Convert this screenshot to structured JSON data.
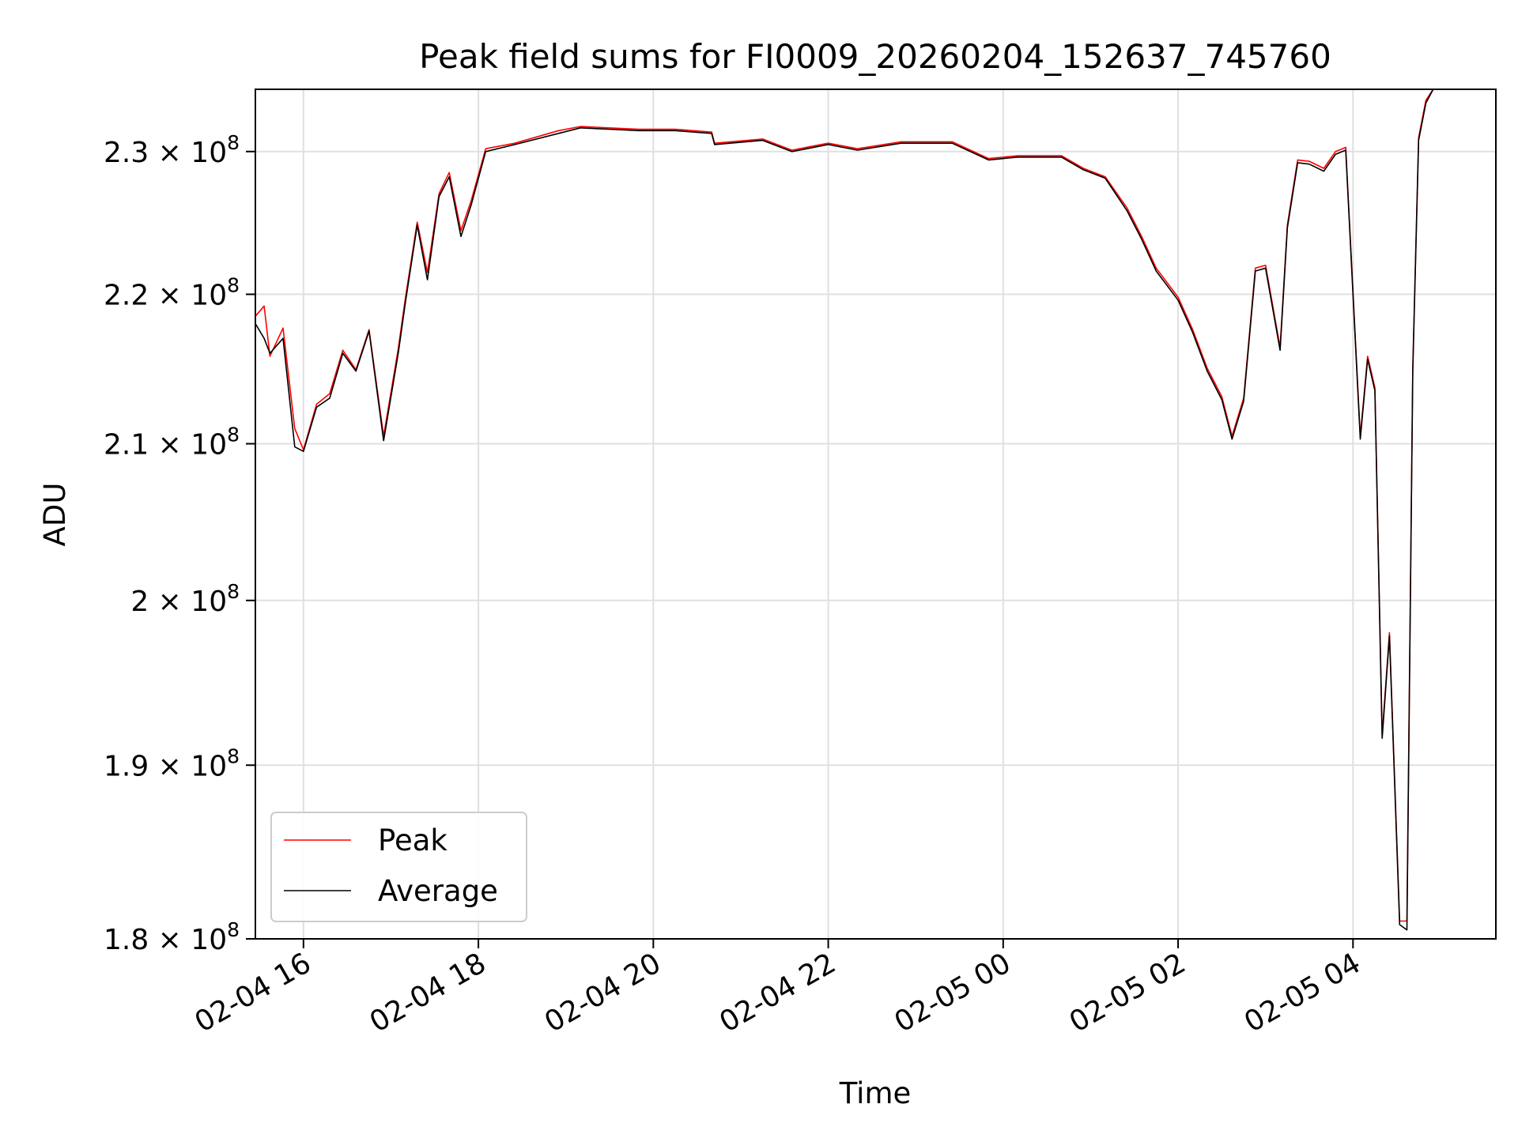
{
  "chart_data": {
    "type": "line",
    "title": "Peak field sums for FI0009_20260204_152637_745760",
    "xlabel": "Time",
    "ylabel": "ADU",
    "y_scale": "log",
    "grid": true,
    "legend_placement": "lower-left",
    "xlim": [
      "2026-02-04 15:27",
      "2026-02-05 05:38"
    ],
    "ylim": [
      180000000,
      234500000
    ],
    "x_ticks": [
      {
        "value": "2026-02-04 16:00",
        "label": "02-04 16"
      },
      {
        "value": "2026-02-04 18:00",
        "label": "02-04 18"
      },
      {
        "value": "2026-02-04 20:00",
        "label": "02-04 20"
      },
      {
        "value": "2026-02-04 22:00",
        "label": "02-04 22"
      },
      {
        "value": "2026-02-05 00:00",
        "label": "02-05 00"
      },
      {
        "value": "2026-02-05 02:00",
        "label": "02-05 02"
      },
      {
        "value": "2026-02-05 04:00",
        "label": "02-05 04"
      }
    ],
    "y_ticks": [
      {
        "value": 180000000,
        "mantissa": "1.8",
        "exponent": "8"
      },
      {
        "value": 190000000,
        "mantissa": "1.9",
        "exponent": "8"
      },
      {
        "value": 200000000,
        "mantissa": "2",
        "exponent": "8"
      },
      {
        "value": 210000000,
        "mantissa": "2.1",
        "exponent": "8"
      },
      {
        "value": 220000000,
        "mantissa": "2.2",
        "exponent": "8"
      },
      {
        "value": 230000000,
        "mantissa": "2.3",
        "exponent": "8"
      }
    ],
    "colors": {
      "Peak": "#ff0000",
      "Average": "#000000",
      "grid": "#e0e0e0"
    },
    "series": [
      {
        "name": "Peak",
        "x": [
          "2026-02-04 15:27",
          "2026-02-04 15:33",
          "2026-02-04 15:37",
          "2026-02-04 15:46",
          "2026-02-04 15:54",
          "2026-02-04 16:00",
          "2026-02-04 16:09",
          "2026-02-04 16:18",
          "2026-02-04 16:27",
          "2026-02-04 16:36",
          "2026-02-04 16:45",
          "2026-02-04 16:55",
          "2026-02-04 17:05",
          "2026-02-04 17:10",
          "2026-02-04 17:18",
          "2026-02-04 17:25",
          "2026-02-04 17:33",
          "2026-02-04 17:40",
          "2026-02-04 17:48",
          "2026-02-04 17:55",
          "2026-02-04 18:05",
          "2026-02-04 18:25",
          "2026-02-04 18:55",
          "2026-02-04 19:10",
          "2026-02-04 19:50",
          "2026-02-04 20:15",
          "2026-02-04 20:40",
          "2026-02-04 20:42",
          "2026-02-04 21:15",
          "2026-02-04 21:35",
          "2026-02-04 22:00",
          "2026-02-04 22:20",
          "2026-02-04 22:50",
          "2026-02-04 23:25",
          "2026-02-04 23:50",
          "2026-02-05 00:10",
          "2026-02-05 00:40",
          "2026-02-05 00:55",
          "2026-02-05 01:10",
          "2026-02-05 01:25",
          "2026-02-05 01:35",
          "2026-02-05 01:45",
          "2026-02-05 02:00",
          "2026-02-05 02:10",
          "2026-02-05 02:20",
          "2026-02-05 02:30",
          "2026-02-05 02:37",
          "2026-02-05 02:45",
          "2026-02-05 02:53",
          "2026-02-05 03:00",
          "2026-02-05 03:10",
          "2026-02-05 03:15",
          "2026-02-05 03:22",
          "2026-02-05 03:30",
          "2026-02-05 03:40",
          "2026-02-05 03:48",
          "2026-02-05 03:55",
          "2026-02-05 04:05",
          "2026-02-05 04:10",
          "2026-02-05 04:15",
          "2026-02-05 04:20",
          "2026-02-05 04:25",
          "2026-02-05 04:32",
          "2026-02-05 04:37",
          "2026-02-05 04:41",
          "2026-02-05 04:45",
          "2026-02-05 04:50",
          "2026-02-05 04:55"
        ],
        "values": [
          218500000,
          219200000,
          215800000,
          217700000,
          211000000,
          209600000,
          212600000,
          213300000,
          216200000,
          214900000,
          217600000,
          210500000,
          216300000,
          219800000,
          225000000,
          221500000,
          227000000,
          228500000,
          224400000,
          226500000,
          230200000,
          230600000,
          231500000,
          231800000,
          231600000,
          231600000,
          231400000,
          230600000,
          230900000,
          230100000,
          230600000,
          230200000,
          230700000,
          230700000,
          229500000,
          229700000,
          229700000,
          228800000,
          228200000,
          226000000,
          224000000,
          221800000,
          219800000,
          217600000,
          215000000,
          213100000,
          210500000,
          213000000,
          221800000,
          222000000,
          216400000,
          224800000,
          229400000,
          229300000,
          228800000,
          230000000,
          230300000,
          210500000,
          215800000,
          213700000,
          191800000,
          198000000,
          181000000,
          181000000,
          215000000,
          231000000,
          233700000,
          234500000
        ]
      },
      {
        "name": "Average",
        "x": [
          "2026-02-04 15:27",
          "2026-02-04 15:33",
          "2026-02-04 15:37",
          "2026-02-04 15:46",
          "2026-02-04 15:54",
          "2026-02-04 16:00",
          "2026-02-04 16:09",
          "2026-02-04 16:18",
          "2026-02-04 16:27",
          "2026-02-04 16:36",
          "2026-02-04 16:45",
          "2026-02-04 16:55",
          "2026-02-04 17:05",
          "2026-02-04 17:10",
          "2026-02-04 17:18",
          "2026-02-04 17:25",
          "2026-02-04 17:33",
          "2026-02-04 17:40",
          "2026-02-04 17:48",
          "2026-02-04 17:55",
          "2026-02-04 18:05",
          "2026-02-04 18:25",
          "2026-02-04 18:55",
          "2026-02-04 19:10",
          "2026-02-04 19:50",
          "2026-02-04 20:15",
          "2026-02-04 20:40",
          "2026-02-04 20:42",
          "2026-02-04 21:15",
          "2026-02-04 21:35",
          "2026-02-04 22:00",
          "2026-02-04 22:20",
          "2026-02-04 22:50",
          "2026-02-04 23:25",
          "2026-02-04 23:50",
          "2026-02-05 00:10",
          "2026-02-05 00:40",
          "2026-02-05 00:55",
          "2026-02-05 01:10",
          "2026-02-05 01:25",
          "2026-02-05 01:35",
          "2026-02-05 01:45",
          "2026-02-05 02:00",
          "2026-02-05 02:10",
          "2026-02-05 02:20",
          "2026-02-05 02:30",
          "2026-02-05 02:37",
          "2026-02-05 02:45",
          "2026-02-05 02:53",
          "2026-02-05 03:00",
          "2026-02-05 03:10",
          "2026-02-05 03:15",
          "2026-02-05 03:22",
          "2026-02-05 03:30",
          "2026-02-05 03:40",
          "2026-02-05 03:48",
          "2026-02-05 03:55",
          "2026-02-05 04:05",
          "2026-02-05 04:10",
          "2026-02-05 04:15",
          "2026-02-05 04:20",
          "2026-02-05 04:25",
          "2026-02-05 04:32",
          "2026-02-05 04:37",
          "2026-02-05 04:41",
          "2026-02-05 04:45",
          "2026-02-05 04:50",
          "2026-02-05 04:55"
        ],
        "values": [
          218000000,
          217000000,
          216000000,
          217000000,
          209800000,
          209500000,
          212400000,
          213000000,
          216000000,
          214800000,
          217500000,
          210200000,
          216000000,
          219500000,
          224800000,
          221000000,
          226800000,
          228200000,
          224000000,
          226200000,
          230000000,
          230500000,
          231300000,
          231700000,
          231500000,
          231500000,
          231300000,
          230500000,
          230800000,
          230000000,
          230500000,
          230100000,
          230600000,
          230600000,
          229400000,
          229600000,
          229600000,
          228700000,
          228100000,
          225800000,
          223800000,
          221600000,
          219600000,
          217400000,
          214800000,
          212900000,
          210300000,
          212800000,
          221600000,
          221800000,
          216200000,
          224600000,
          229200000,
          229100000,
          228600000,
          229800000,
          230100000,
          210300000,
          215600000,
          213500000,
          191600000,
          197800000,
          180800000,
          180500000,
          214800000,
          230800000,
          233500000,
          234500000
        ]
      }
    ]
  }
}
